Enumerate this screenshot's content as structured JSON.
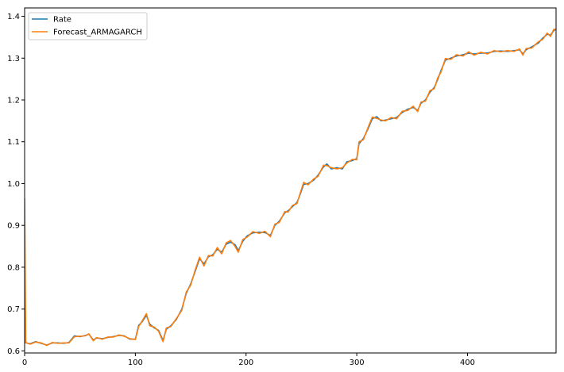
{
  "chart_data": {
    "type": "line",
    "title": "",
    "xlabel": "",
    "ylabel": "",
    "xlim": [
      0,
      480
    ],
    "ylim": [
      0.595,
      1.42
    ],
    "grid": false,
    "legend_placement": "top-left",
    "x_ticks": [
      0,
      100,
      200,
      300,
      400
    ],
    "y_ticks": [
      0.6,
      0.7,
      0.8,
      0.9,
      1.0,
      1.1,
      1.2,
      1.3,
      1.4
    ],
    "x_tick_labels": [
      "0",
      "100",
      "200",
      "300",
      "400"
    ],
    "y_tick_labels": [
      "0.6",
      "0.7",
      "0.8",
      "0.9",
      "1.0",
      "1.1",
      "1.2",
      "1.3",
      "1.4"
    ],
    "series": [
      {
        "name": "Rate",
        "color": "#1f77b4",
        "points": [
          [
            0,
            0.62
          ],
          [
            5,
            0.617
          ],
          [
            10,
            0.622
          ],
          [
            15,
            0.618
          ],
          [
            20,
            0.614
          ],
          [
            25,
            0.619
          ],
          [
            30,
            0.619
          ],
          [
            35,
            0.618
          ],
          [
            40,
            0.62
          ],
          [
            45,
            0.636
          ],
          [
            50,
            0.634
          ],
          [
            55,
            0.637
          ],
          [
            58,
            0.64
          ],
          [
            62,
            0.626
          ],
          [
            65,
            0.631
          ],
          [
            70,
            0.629
          ],
          [
            75,
            0.632
          ],
          [
            80,
            0.634
          ],
          [
            85,
            0.637
          ],
          [
            90,
            0.636
          ],
          [
            95,
            0.628
          ],
          [
            100,
            0.628
          ],
          [
            103,
            0.661
          ],
          [
            106,
            0.669
          ],
          [
            110,
            0.685
          ],
          [
            113,
            0.664
          ],
          [
            117,
            0.655
          ],
          [
            121,
            0.649
          ],
          [
            125,
            0.625
          ],
          [
            128,
            0.652
          ],
          [
            132,
            0.66
          ],
          [
            137,
            0.675
          ],
          [
            142,
            0.7
          ],
          [
            146,
            0.738
          ],
          [
            150,
            0.76
          ],
          [
            154,
            0.79
          ],
          [
            158,
            0.82
          ],
          [
            162,
            0.808
          ],
          [
            166,
            0.825
          ],
          [
            170,
            0.83
          ],
          [
            174,
            0.843
          ],
          [
            178,
            0.836
          ],
          [
            182,
            0.855
          ],
          [
            186,
            0.86
          ],
          [
            190,
            0.854
          ],
          [
            193,
            0.84
          ],
          [
            197,
            0.862
          ],
          [
            201,
            0.875
          ],
          [
            206,
            0.882
          ],
          [
            212,
            0.884
          ],
          [
            217,
            0.883
          ],
          [
            222,
            0.876
          ],
          [
            226,
            0.9
          ],
          [
            230,
            0.91
          ],
          [
            235,
            0.93
          ],
          [
            238,
            0.935
          ],
          [
            242,
            0.945
          ],
          [
            246,
            0.955
          ],
          [
            249,
            0.975
          ],
          [
            252,
            0.998
          ],
          [
            256,
            1.0
          ],
          [
            261,
            1.008
          ],
          [
            265,
            1.02
          ],
          [
            270,
            1.04
          ],
          [
            273,
            1.047
          ],
          [
            277,
            1.035
          ],
          [
            282,
            1.038
          ],
          [
            287,
            1.035
          ],
          [
            291,
            1.052
          ],
          [
            296,
            1.055
          ],
          [
            300,
            1.06
          ],
          [
            302,
            1.095
          ],
          [
            306,
            1.108
          ],
          [
            310,
            1.13
          ],
          [
            314,
            1.155
          ],
          [
            318,
            1.16
          ],
          [
            322,
            1.15
          ],
          [
            326,
            1.152
          ],
          [
            331,
            1.155
          ],
          [
            336,
            1.158
          ],
          [
            341,
            1.17
          ],
          [
            346,
            1.178
          ],
          [
            351,
            1.182
          ],
          [
            355,
            1.175
          ],
          [
            358,
            1.192
          ],
          [
            362,
            1.2
          ],
          [
            366,
            1.218
          ],
          [
            370,
            1.23
          ],
          [
            373,
            1.248
          ],
          [
            376,
            1.27
          ],
          [
            380,
            1.295
          ],
          [
            385,
            1.3
          ],
          [
            390,
            1.305
          ],
          [
            396,
            1.308
          ],
          [
            401,
            1.312
          ],
          [
            406,
            1.31
          ],
          [
            412,
            1.312
          ],
          [
            418,
            1.312
          ],
          [
            424,
            1.316
          ],
          [
            430,
            1.317
          ],
          [
            436,
            1.316
          ],
          [
            442,
            1.318
          ],
          [
            447,
            1.32
          ],
          [
            450,
            1.31
          ],
          [
            453,
            1.32
          ],
          [
            458,
            1.327
          ],
          [
            464,
            1.336
          ],
          [
            468,
            1.348
          ],
          [
            472,
            1.357
          ],
          [
            475,
            1.355
          ],
          [
            478,
            1.366
          ],
          [
            482,
            1.372
          ],
          [
            486,
            1.375
          ],
          [
            489,
            1.38
          ]
        ]
      },
      {
        "name": "Forecast_ARMAGARCH",
        "color": "#ff7f0e",
        "points": [
          [
            0,
            0.965
          ],
          [
            1,
            0.62
          ],
          [
            5,
            0.616
          ],
          [
            10,
            0.621
          ],
          [
            15,
            0.619
          ],
          [
            20,
            0.613
          ],
          [
            25,
            0.62
          ],
          [
            30,
            0.618
          ],
          [
            35,
            0.619
          ],
          [
            40,
            0.619
          ],
          [
            45,
            0.634
          ],
          [
            50,
            0.635
          ],
          [
            55,
            0.636
          ],
          [
            58,
            0.641
          ],
          [
            62,
            0.624
          ],
          [
            65,
            0.632
          ],
          [
            70,
            0.628
          ],
          [
            75,
            0.633
          ],
          [
            80,
            0.633
          ],
          [
            85,
            0.638
          ],
          [
            90,
            0.635
          ],
          [
            95,
            0.629
          ],
          [
            100,
            0.627
          ],
          [
            103,
            0.658
          ],
          [
            106,
            0.671
          ],
          [
            110,
            0.689
          ],
          [
            113,
            0.66
          ],
          [
            117,
            0.657
          ],
          [
            121,
            0.647
          ],
          [
            125,
            0.622
          ],
          [
            128,
            0.655
          ],
          [
            132,
            0.658
          ],
          [
            137,
            0.677
          ],
          [
            142,
            0.697
          ],
          [
            146,
            0.741
          ],
          [
            150,
            0.757
          ],
          [
            154,
            0.793
          ],
          [
            158,
            0.824
          ],
          [
            162,
            0.803
          ],
          [
            166,
            0.828
          ],
          [
            170,
            0.827
          ],
          [
            174,
            0.847
          ],
          [
            178,
            0.832
          ],
          [
            182,
            0.858
          ],
          [
            186,
            0.864
          ],
          [
            190,
            0.85
          ],
          [
            193,
            0.836
          ],
          [
            197,
            0.866
          ],
          [
            201,
            0.872
          ],
          [
            206,
            0.885
          ],
          [
            212,
            0.881
          ],
          [
            217,
            0.886
          ],
          [
            222,
            0.873
          ],
          [
            226,
            0.903
          ],
          [
            230,
            0.907
          ],
          [
            235,
            0.933
          ],
          [
            238,
            0.932
          ],
          [
            242,
            0.948
          ],
          [
            246,
            0.952
          ],
          [
            249,
            0.978
          ],
          [
            252,
            1.003
          ],
          [
            256,
            0.997
          ],
          [
            261,
            1.011
          ],
          [
            265,
            1.017
          ],
          [
            270,
            1.044
          ],
          [
            273,
            1.043
          ],
          [
            277,
            1.038
          ],
          [
            282,
            1.035
          ],
          [
            287,
            1.038
          ],
          [
            291,
            1.049
          ],
          [
            296,
            1.058
          ],
          [
            300,
            1.057
          ],
          [
            302,
            1.1
          ],
          [
            306,
            1.105
          ],
          [
            310,
            1.133
          ],
          [
            314,
            1.159
          ],
          [
            318,
            1.156
          ],
          [
            322,
            1.152
          ],
          [
            326,
            1.15
          ],
          [
            331,
            1.158
          ],
          [
            336,
            1.155
          ],
          [
            341,
            1.173
          ],
          [
            346,
            1.175
          ],
          [
            351,
            1.185
          ],
          [
            355,
            1.172
          ],
          [
            358,
            1.195
          ],
          [
            362,
            1.197
          ],
          [
            366,
            1.222
          ],
          [
            370,
            1.227
          ],
          [
            373,
            1.252
          ],
          [
            376,
            1.266
          ],
          [
            380,
            1.299
          ],
          [
            385,
            1.297
          ],
          [
            390,
            1.308
          ],
          [
            396,
            1.305
          ],
          [
            401,
            1.315
          ],
          [
            406,
            1.307
          ],
          [
            412,
            1.314
          ],
          [
            418,
            1.31
          ],
          [
            424,
            1.318
          ],
          [
            430,
            1.315
          ],
          [
            436,
            1.318
          ],
          [
            442,
            1.316
          ],
          [
            447,
            1.322
          ],
          [
            450,
            1.307
          ],
          [
            453,
            1.323
          ],
          [
            458,
            1.324
          ],
          [
            464,
            1.339
          ],
          [
            468,
            1.345
          ],
          [
            472,
            1.36
          ],
          [
            475,
            1.352
          ],
          [
            478,
            1.369
          ],
          [
            482,
            1.369
          ],
          [
            486,
            1.378
          ],
          [
            489,
            1.382
          ]
        ]
      }
    ]
  }
}
